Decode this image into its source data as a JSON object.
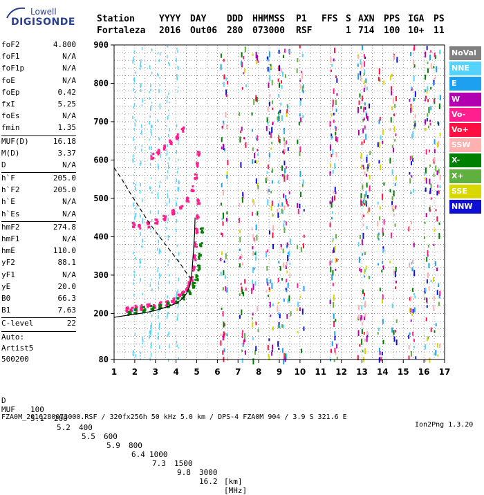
{
  "logo": {
    "brand": "Lowell",
    "name": "DIGISONDE"
  },
  "header": {
    "labels": [
      "Station",
      "YYYY",
      "DAY",
      "DDD",
      "HHMMSS",
      "P1",
      "FFS",
      "S",
      "AXN",
      "PPS",
      "IGA",
      "PS"
    ],
    "values": [
      "Fortaleza",
      "2016",
      "Out06",
      "280",
      "073000",
      "RSF",
      "1",
      "714",
      "100",
      "10+",
      "11"
    ]
  },
  "params": {
    "group1": [
      {
        "name": "foF2",
        "value": "4.800"
      },
      {
        "name": "foF1",
        "value": "N/A"
      },
      {
        "name": "foF1p",
        "value": "N/A"
      },
      {
        "name": "foE",
        "value": "N/A"
      },
      {
        "name": "foEp",
        "value": "0.42"
      },
      {
        "name": "fxI",
        "value": "5.25"
      },
      {
        "name": "foEs",
        "value": "N/A"
      },
      {
        "name": "fmin",
        "value": "1.35"
      }
    ],
    "group2": [
      {
        "name": "MUF(D)",
        "value": "16.18"
      },
      {
        "name": "M(D)",
        "value": "3.37"
      },
      {
        "name": "D",
        "value": "N/A"
      }
    ],
    "group3": [
      {
        "name": "h`F",
        "value": "205.0"
      },
      {
        "name": "h`F2",
        "value": "205.0"
      },
      {
        "name": "h`E",
        "value": "N/A"
      },
      {
        "name": "h`Es",
        "value": "N/A"
      }
    ],
    "group4": [
      {
        "name": "hmF2",
        "value": "274.8"
      },
      {
        "name": "hmF1",
        "value": "N/A"
      },
      {
        "name": "hmE",
        "value": "110.0"
      },
      {
        "name": "yF2",
        "value": "88.1"
      },
      {
        "name": "yF1",
        "value": "N/A"
      },
      {
        "name": "yE",
        "value": "20.0"
      },
      {
        "name": "B0",
        "value": "66.3"
      },
      {
        "name": "B1",
        "value": "7.63"
      }
    ],
    "group5": [
      {
        "name": "C-level",
        "value": "22"
      }
    ],
    "auto_lines": [
      "Auto:",
      "Artist5",
      "500200"
    ]
  },
  "legend": [
    {
      "label": "NoVal",
      "color": "#808080"
    },
    {
      "label": "NNE",
      "color": "#55d3ff"
    },
    {
      "label": "E",
      "color": "#1ea0f0"
    },
    {
      "label": "W",
      "color": "#b000b0"
    },
    {
      "label": "Vo-",
      "color": "#ff1f8f"
    },
    {
      "label": "Vo+",
      "color": "#ff1040"
    },
    {
      "label": "SSW",
      "color": "#ffb0b0"
    },
    {
      "label": "X-",
      "color": "#008000"
    },
    {
      "label": "X+",
      "color": "#60b040"
    },
    {
      "label": "SSE",
      "color": "#d8d800"
    },
    {
      "label": "NNW",
      "color": "#1010d0"
    }
  ],
  "chart_data": {
    "type": "scatter",
    "xlim": [
      1,
      17
    ],
    "ylim": [
      80,
      900
    ],
    "x_ticks": [
      1,
      2,
      3,
      4,
      5,
      6,
      7,
      8,
      9,
      10,
      11,
      12,
      13,
      14,
      15,
      16,
      17
    ],
    "y_ticks": [
      80,
      200,
      300,
      400,
      500,
      600,
      700,
      800,
      900
    ],
    "grid": true,
    "legend_position": "right",
    "series": [
      {
        "color": "#ff1f8f",
        "points": [
          [
            1.6,
            212
          ],
          [
            1.8,
            214
          ],
          [
            2.0,
            216
          ],
          [
            2.3,
            218
          ],
          [
            2.6,
            220
          ],
          [
            2.9,
            223
          ],
          [
            3.2,
            226
          ],
          [
            3.5,
            230
          ],
          [
            3.8,
            237
          ],
          [
            4.1,
            246
          ],
          [
            4.3,
            254
          ],
          [
            4.5,
            266
          ],
          [
            4.6,
            278
          ],
          [
            4.7,
            292
          ],
          [
            4.8,
            318
          ],
          [
            4.85,
            348
          ],
          [
            4.9,
            382
          ],
          [
            4.95,
            418
          ],
          [
            5.0,
            455
          ],
          [
            5.05,
            495
          ]
        ]
      },
      {
        "color": "#008000",
        "points": [
          [
            1.7,
            205
          ],
          [
            2.0,
            208
          ],
          [
            2.4,
            212
          ],
          [
            2.8,
            216
          ],
          [
            3.2,
            220
          ],
          [
            3.6,
            226
          ],
          [
            4.0,
            236
          ],
          [
            4.3,
            246
          ],
          [
            4.6,
            260
          ],
          [
            4.8,
            276
          ],
          [
            4.95,
            296
          ],
          [
            5.05,
            322
          ],
          [
            5.1,
            352
          ],
          [
            5.15,
            384
          ],
          [
            5.2,
            420
          ]
        ]
      },
      {
        "color": "#ff1f8f",
        "points": [
          [
            1.9,
            432
          ],
          [
            2.2,
            428
          ],
          [
            2.6,
            434
          ],
          [
            3.0,
            442
          ],
          [
            3.4,
            452
          ],
          [
            3.8,
            466
          ],
          [
            4.2,
            482
          ],
          [
            4.5,
            500
          ],
          [
            4.75,
            528
          ],
          [
            4.9,
            560
          ],
          [
            5.0,
            590
          ],
          [
            5.05,
            618
          ]
        ]
      },
      {
        "color": "#ff1f8f",
        "points": [
          [
            2.8,
            612
          ],
          [
            3.1,
            622
          ],
          [
            3.4,
            634
          ],
          [
            3.7,
            648
          ],
          [
            4.0,
            664
          ],
          [
            4.3,
            682
          ]
        ]
      }
    ],
    "curves": [
      {
        "style": "solid",
        "points": [
          [
            1.0,
            190
          ],
          [
            1.5,
            194
          ],
          [
            2.0,
            198
          ],
          [
            2.5,
            202
          ],
          [
            3.0,
            208
          ],
          [
            3.5,
            216
          ],
          [
            4.0,
            226
          ],
          [
            4.3,
            238
          ],
          [
            4.5,
            252
          ],
          [
            4.65,
            270
          ],
          [
            4.75,
            296
          ],
          [
            4.8,
            330
          ],
          [
            4.85,
            368
          ],
          [
            4.9,
            410
          ],
          [
            4.92,
            450
          ]
        ]
      },
      {
        "style": "dashed",
        "points": [
          [
            1.0,
            580
          ],
          [
            1.4,
            548
          ],
          [
            1.8,
            512
          ],
          [
            2.2,
            478
          ],
          [
            2.6,
            444
          ],
          [
            3.0,
            414
          ],
          [
            3.4,
            386
          ],
          [
            3.8,
            358
          ],
          [
            4.2,
            330
          ],
          [
            4.5,
            306
          ],
          [
            4.7,
            292
          ]
        ]
      }
    ]
  },
  "footer": {
    "d_label": "D",
    "d_values": [
      "100",
      "200",
      "400",
      "600",
      "800",
      "1000",
      "1500",
      "3000",
      "[km]"
    ],
    "muf_label": "MUF",
    "muf_values": [
      "5.1",
      "5.2",
      "5.5",
      "5.9",
      "6.4",
      "7.3",
      "9.8",
      "16.2",
      "[MHz]"
    ],
    "info": "FZA0M_2016280073000.RSF / 320fx256h 50 kHz 5.0 km / DPS-4 FZA0M 904 / 3.9 S 321.6 E",
    "version": "Ion2Png 1.3.20"
  }
}
